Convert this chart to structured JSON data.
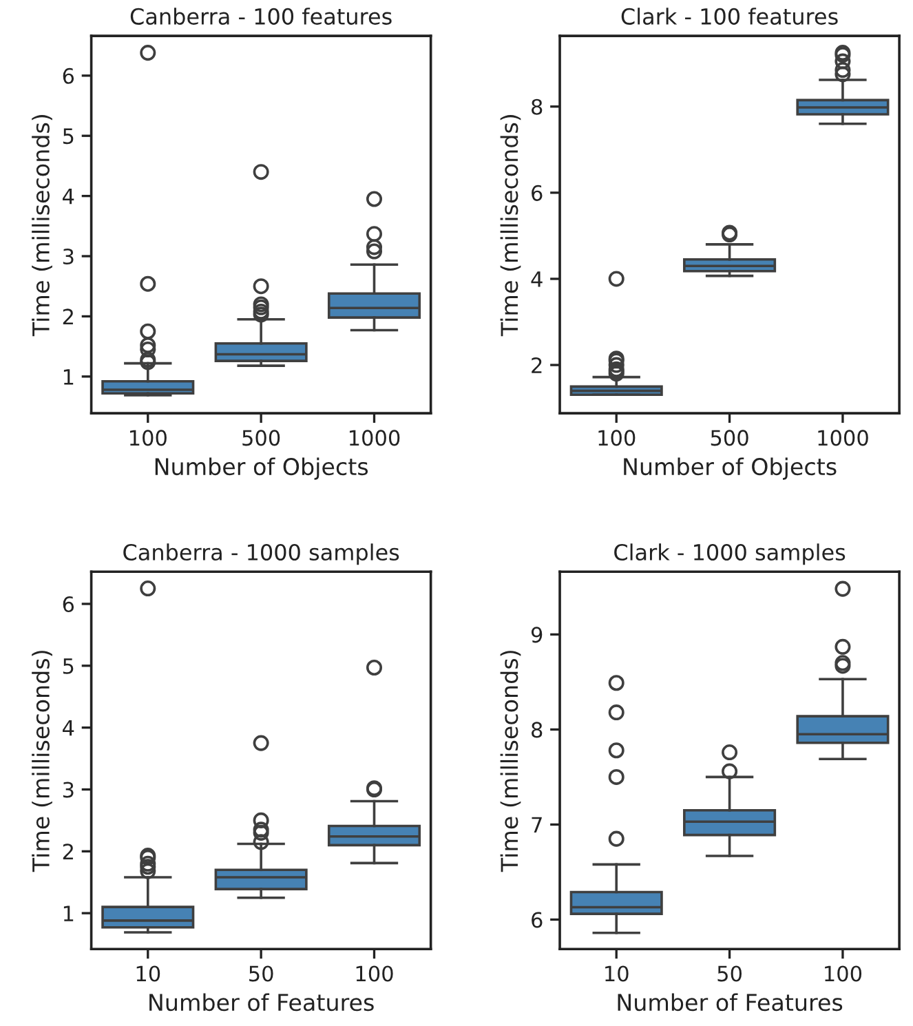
{
  "chart_data": [
    {
      "type": "box",
      "title": "Canberra - 100 features",
      "xlabel": "Number of Objects",
      "ylabel": "Time (milliseconds)",
      "categories": [
        "100",
        "500",
        "1000"
      ],
      "color": "#4682b4",
      "ylim": [
        0.39,
        6.66
      ],
      "yticks": [
        1,
        2,
        3,
        4,
        5,
        6
      ],
      "boxes": [
        {
          "low": 0.69,
          "q1": 0.72,
          "median": 0.78,
          "q3": 0.92,
          "high": 1.22,
          "outliers": [
            1.24,
            1.28,
            1.45,
            1.52,
            1.75,
            2.54,
            6.38
          ]
        },
        {
          "low": 1.18,
          "q1": 1.26,
          "median": 1.37,
          "q3": 1.55,
          "high": 1.95,
          "outliers": [
            2.03,
            2.08,
            2.15,
            2.2,
            2.5,
            4.4
          ]
        },
        {
          "low": 1.77,
          "q1": 1.98,
          "median": 2.14,
          "q3": 2.38,
          "high": 2.86,
          "outliers": [
            3.08,
            3.15,
            3.37,
            3.95
          ]
        }
      ]
    },
    {
      "type": "box",
      "title": "Clark - 100 features",
      "xlabel": "Number of Objects",
      "ylabel": "Time (milliseconds)",
      "categories": [
        "100",
        "500",
        "1000"
      ],
      "color": "#4682b4",
      "ylim": [
        0.88,
        9.64
      ],
      "yticks": [
        2,
        4,
        6,
        8
      ],
      "boxes": [
        {
          "low": 1.31,
          "q1": 1.31,
          "median": 1.4,
          "q3": 1.5,
          "high": 1.72,
          "outliers": [
            1.8,
            1.85,
            1.9,
            2.0,
            2.1,
            2.15,
            4.0
          ]
        },
        {
          "low": 4.07,
          "q1": 4.18,
          "median": 4.3,
          "q3": 4.45,
          "high": 4.8,
          "outliers": [
            5.03,
            5.07
          ]
        },
        {
          "low": 7.6,
          "q1": 7.82,
          "median": 7.98,
          "q3": 8.15,
          "high": 8.62,
          "outliers": [
            8.75,
            8.85,
            9.05,
            9.2,
            9.25
          ]
        }
      ]
    },
    {
      "type": "box",
      "title": "Canberra - 1000 samples",
      "xlabel": "Number of Features",
      "ylabel": "Time (milliseconds)",
      "categories": [
        "10",
        "50",
        "100"
      ],
      "color": "#4682b4",
      "ylim": [
        0.42,
        6.52
      ],
      "yticks": [
        1,
        2,
        3,
        4,
        5,
        6
      ],
      "boxes": [
        {
          "low": 0.69,
          "q1": 0.77,
          "median": 0.88,
          "q3": 1.1,
          "high": 1.58,
          "outliers": [
            1.68,
            1.75,
            1.8,
            1.9,
            1.93,
            6.25
          ]
        },
        {
          "low": 1.25,
          "q1": 1.39,
          "median": 1.58,
          "q3": 1.7,
          "high": 2.12,
          "outliers": [
            2.15,
            2.3,
            2.35,
            2.5,
            3.75
          ]
        },
        {
          "low": 1.81,
          "q1": 2.1,
          "median": 2.24,
          "q3": 2.41,
          "high": 2.81,
          "outliers": [
            3.0,
            3.02,
            4.97
          ]
        }
      ]
    },
    {
      "type": "box",
      "title": "Clark - 1000 samples",
      "xlabel": "Number of Features",
      "ylabel": "Time (milliseconds)",
      "categories": [
        "10",
        "50",
        "100"
      ],
      "color": "#4682b4",
      "ylim": [
        5.69,
        9.66
      ],
      "yticks": [
        6,
        7,
        8,
        9
      ],
      "boxes": [
        {
          "low": 5.86,
          "q1": 6.06,
          "median": 6.13,
          "q3": 6.29,
          "high": 6.58,
          "outliers": [
            6.85,
            7.5,
            7.78,
            8.18,
            8.49
          ]
        },
        {
          "low": 6.67,
          "q1": 6.89,
          "median": 7.03,
          "q3": 7.15,
          "high": 7.5,
          "outliers": [
            7.56,
            7.76
          ]
        },
        {
          "low": 7.69,
          "q1": 7.86,
          "median": 7.95,
          "q3": 8.14,
          "high": 8.53,
          "outliers": [
            8.67,
            8.7,
            8.87,
            9.48
          ]
        }
      ]
    }
  ]
}
